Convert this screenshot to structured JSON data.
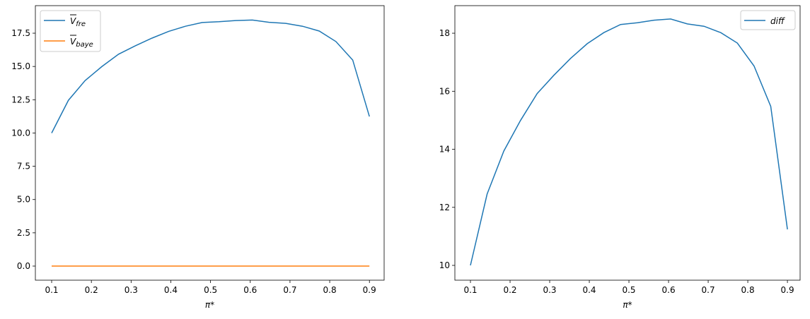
{
  "chart_data": [
    {
      "type": "line",
      "xlabel": "π*",
      "ylabel": "",
      "xlim": [
        0.059,
        0.937
      ],
      "ylim": [
        -1.06,
        19.57
      ],
      "xticks": [
        "0.1",
        "0.2",
        "0.3",
        "0.4",
        "0.5",
        "0.6",
        "0.7",
        "0.8",
        "0.9"
      ],
      "yticks": [
        "0.0",
        "2.5",
        "5.0",
        "7.5",
        "10.0",
        "12.5",
        "15.0",
        "17.5"
      ],
      "legend_position": "top-left",
      "grid": false,
      "x": [
        0.1,
        0.1421,
        0.1842,
        0.2263,
        0.2684,
        0.3105,
        0.3526,
        0.3947,
        0.4368,
        0.4789,
        0.5211,
        0.5632,
        0.6053,
        0.6474,
        0.6895,
        0.7316,
        0.7737,
        0.8158,
        0.8579,
        0.9
      ],
      "series": [
        {
          "name": "V̄_fre",
          "label_main": "V",
          "label_sub": "fre",
          "color": "#1f77b4",
          "values": [
            10.0,
            12.46,
            13.94,
            14.99,
            15.92,
            16.55,
            17.13,
            17.64,
            18.02,
            18.3,
            18.36,
            18.45,
            18.49,
            18.32,
            18.24,
            18.02,
            17.66,
            16.87,
            15.48,
            11.24
          ]
        },
        {
          "name": "V̄_baye",
          "label_main": "V",
          "label_sub": "baye",
          "color": "#ff7f0e",
          "values": [
            0,
            0,
            0,
            0,
            0,
            0,
            0,
            0,
            0,
            0,
            0,
            0,
            0,
            0,
            0,
            0,
            0,
            0,
            0,
            0
          ]
        }
      ]
    },
    {
      "type": "line",
      "xlabel": "π*",
      "ylabel": "",
      "xlim": [
        0.0607,
        0.932
      ],
      "ylim": [
        9.49,
        18.95
      ],
      "xticks": [
        "0.1",
        "0.2",
        "0.3",
        "0.4",
        "0.5",
        "0.6",
        "0.7",
        "0.8",
        "0.9"
      ],
      "yticks": [
        "10",
        "12",
        "14",
        "16",
        "18"
      ],
      "legend_position": "top-right",
      "grid": false,
      "x": [
        0.1,
        0.1421,
        0.1842,
        0.2263,
        0.2684,
        0.3105,
        0.3526,
        0.3947,
        0.4368,
        0.4789,
        0.5211,
        0.5632,
        0.6053,
        0.6474,
        0.6895,
        0.7316,
        0.7737,
        0.8158,
        0.8579,
        0.9
      ],
      "series": [
        {
          "name": "diff",
          "color": "#1f77b4",
          "values": [
            10.0,
            12.46,
            13.94,
            14.99,
            15.92,
            16.55,
            17.13,
            17.64,
            18.02,
            18.3,
            18.36,
            18.45,
            18.49,
            18.32,
            18.24,
            18.02,
            17.66,
            16.87,
            15.48,
            11.24
          ]
        }
      ]
    }
  ]
}
